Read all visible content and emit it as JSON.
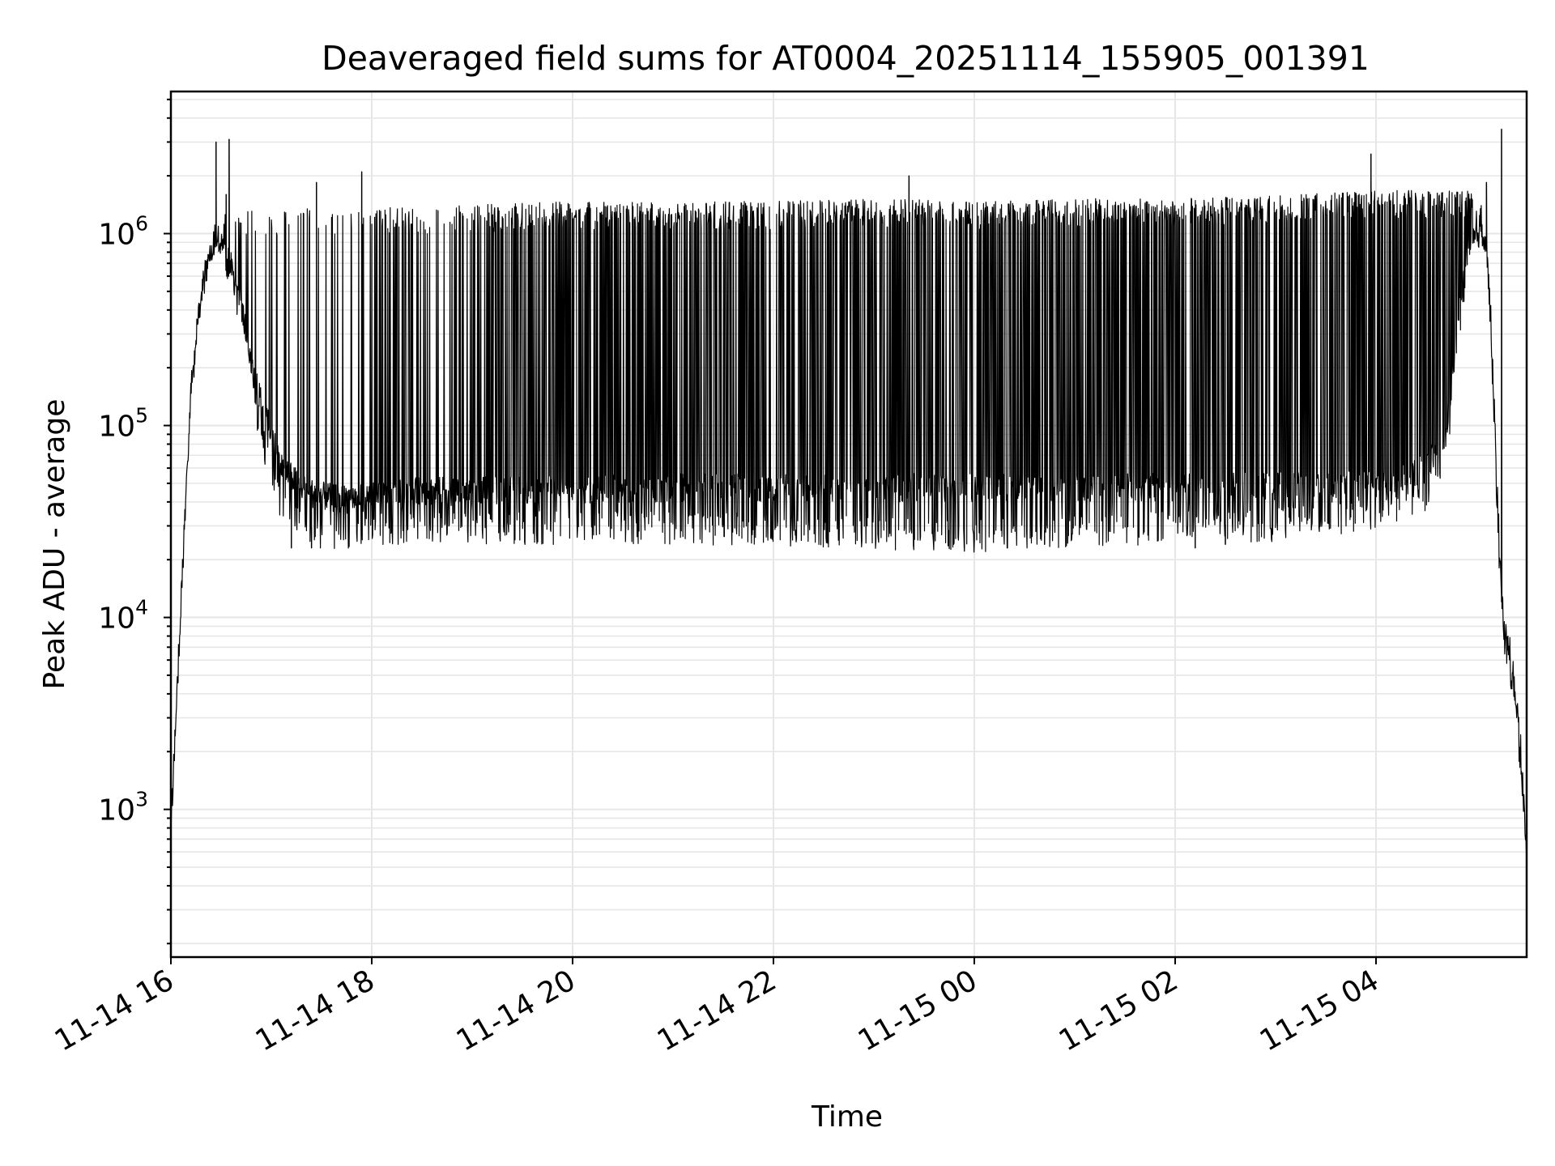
{
  "chart_data": {
    "type": "line",
    "title": "Deaveraged field sums for AT0004_20251114_155905_001391",
    "xlabel": "Time",
    "ylabel": "Peak ADU - average",
    "y_scale": "log",
    "x_unit": "hours since 11-14 16:00",
    "xlim": [
      0.0,
      13.5
    ],
    "ylim": [
      170,
      5500000
    ],
    "x_ticks": [
      {
        "value": 0,
        "label": "11-14 16"
      },
      {
        "value": 2,
        "label": "11-14 18"
      },
      {
        "value": 4,
        "label": "11-14 20"
      },
      {
        "value": 6,
        "label": "11-14 22"
      },
      {
        "value": 8,
        "label": "11-15 00"
      },
      {
        "value": 10,
        "label": "11-15 02"
      },
      {
        "value": 12,
        "label": "11-15 04"
      }
    ],
    "y_ticks": [
      {
        "value": 1000,
        "base": "10",
        "exp": "3"
      },
      {
        "value": 10000,
        "base": "10",
        "exp": "4"
      },
      {
        "value": 100000,
        "base": "10",
        "exp": "5"
      },
      {
        "value": 1000000,
        "base": "10",
        "exp": "6"
      }
    ],
    "grid": true,
    "series_color": "#000000",
    "grid_color": "#e6e6e6",
    "series": [
      {
        "name": "peak_adu_minus_average",
        "envelope": {
          "x": [
            0.0,
            0.05,
            0.1,
            0.15,
            0.2,
            0.3,
            0.45,
            0.55,
            0.65,
            0.75,
            0.8,
            0.9,
            1.0,
            1.1,
            1.25,
            1.35,
            1.45,
            1.55,
            1.7,
            1.8,
            1.9,
            2.0,
            2.5,
            3.0,
            4.0,
            5.0,
            6.0,
            7.0,
            8.0,
            9.0,
            10.0,
            11.0,
            11.5,
            12.0,
            12.5,
            12.7,
            12.8,
            12.9,
            13.0,
            13.05,
            13.1,
            13.15,
            13.2,
            13.25,
            13.3,
            13.35,
            13.4,
            13.45,
            13.5
          ],
          "baseline": [
            800,
            3000,
            12000,
            40000,
            150000,
            500000,
            1000000,
            750000,
            600000,
            300000,
            200000,
            130000,
            90000,
            60000,
            50000,
            45000,
            43000,
            42000,
            41000,
            41000,
            41000,
            42000,
            45000,
            45000,
            46000,
            47000,
            47000,
            47000,
            47000,
            47000,
            47000,
            48000,
            49000,
            50000,
            60000,
            90000,
            300000,
            700000,
            1100000,
            1200000,
            900000,
            300000,
            60000,
            12000,
            8000,
            6000,
            3500,
            1800,
            700
          ],
          "spike_top": [
            800,
            3000,
            12000,
            40000,
            150000,
            500000,
            1000000,
            1300000,
            1300000,
            1250000,
            1250000,
            1300000,
            1250000,
            1300000,
            1300000,
            1300000,
            1300000,
            1300000,
            1300000,
            1300000,
            1300000,
            1300000,
            1300000,
            1350000,
            1400000,
            1400000,
            1400000,
            1450000,
            1400000,
            1450000,
            1450000,
            1500000,
            1550000,
            1600000,
            1600000,
            1600000,
            1600000,
            1600000,
            1500000,
            1200000,
            900000,
            300000,
            60000,
            12000,
            8000,
            6000,
            3500,
            1800,
            700
          ],
          "noise_floor": [
            800,
            3000,
            12000,
            40000,
            150000,
            500000,
            1000000,
            600000,
            500000,
            250000,
            160000,
            90000,
            60000,
            40000,
            33000,
            30000,
            29000,
            28000,
            28000,
            28000,
            28000,
            29000,
            30000,
            30000,
            30000,
            30000,
            29000,
            28000,
            27000,
            29000,
            30000,
            31000,
            33000,
            36000,
            45000,
            70000,
            250000,
            650000,
            1000000,
            1100000,
            850000,
            250000,
            50000,
            10000,
            7000,
            5000,
            3000,
            1500,
            600
          ]
        },
        "spike_density_by_hour": [
          0.15,
          0.3,
          0.45,
          0.75,
          0.85,
          0.85,
          0.85,
          0.85,
          0.85,
          0.85,
          0.85,
          0.85,
          0.85,
          0.6
        ],
        "isolated_peaks": [
          {
            "x": 0.45,
            "y": 3000000
          },
          {
            "x": 0.58,
            "y": 3100000
          },
          {
            "x": 0.55,
            "y": 1600000
          },
          {
            "x": 1.45,
            "y": 1850000
          },
          {
            "x": 1.9,
            "y": 2100000
          },
          {
            "x": 7.35,
            "y": 2000000
          },
          {
            "x": 11.95,
            "y": 2600000
          },
          {
            "x": 13.25,
            "y": 3500000
          },
          {
            "x": 13.1,
            "y": 1850000
          }
        ],
        "dips": [
          {
            "x": 1.2,
            "y": 23000
          },
          {
            "x": 1.4,
            "y": 23000
          },
          {
            "x": 7.9,
            "y": 23000
          },
          {
            "x": 10.2,
            "y": 23000
          },
          {
            "x": 10.5,
            "y": 24000
          },
          {
            "x": 8.7,
            "y": 24000
          }
        ]
      }
    ]
  }
}
